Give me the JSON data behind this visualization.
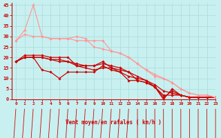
{
  "xlabel": "Vent moyen/en rafales ( km/h )",
  "xlim": [
    -0.5,
    23
  ],
  "ylim": [
    0,
    46
  ],
  "yticks": [
    0,
    5,
    10,
    15,
    20,
    25,
    30,
    35,
    40,
    45
  ],
  "xticks": [
    0,
    1,
    2,
    3,
    4,
    5,
    6,
    7,
    8,
    9,
    10,
    11,
    12,
    13,
    14,
    15,
    16,
    17,
    18,
    19,
    20,
    21,
    22,
    23
  ],
  "background_color": "#c8f0f0",
  "grid_color": "#b0dede",
  "lines": [
    {
      "x": [
        0,
        1,
        2,
        3,
        4,
        5,
        6,
        7,
        8,
        9,
        10,
        11,
        12,
        13,
        14,
        15,
        16,
        17,
        18,
        19,
        20,
        21,
        22,
        23
      ],
      "y": [
        18,
        21,
        21,
        21,
        20,
        20,
        20,
        16,
        16,
        16,
        18,
        15,
        14,
        13,
        9,
        8,
        6,
        2,
        2,
        2,
        1,
        1,
        1,
        1
      ],
      "color": "#cc0000",
      "lw": 0.9,
      "marker": "D",
      "ms": 1.8
    },
    {
      "x": [
        0,
        1,
        2,
        3,
        4,
        5,
        6,
        7,
        8,
        9,
        10,
        11,
        12,
        13,
        14,
        15,
        16,
        17,
        18,
        19,
        20,
        21,
        22,
        23
      ],
      "y": [
        18,
        20,
        20,
        14,
        13,
        10,
        13,
        13,
        13,
        13,
        16,
        14,
        13,
        9,
        9,
        8,
        6,
        1,
        4,
        2,
        1,
        1,
        1,
        1
      ],
      "color": "#cc0000",
      "lw": 0.9,
      "marker": "D",
      "ms": 1.8
    },
    {
      "x": [
        0,
        1,
        2,
        3,
        4,
        5,
        6,
        7,
        8,
        9,
        10,
        11,
        12,
        13,
        14,
        15,
        16,
        17,
        18,
        19,
        20,
        21,
        22,
        23
      ],
      "y": [
        18,
        20,
        20,
        20,
        19,
        18,
        18,
        16,
        15,
        14,
        15,
        15,
        13,
        11,
        10,
        9,
        6,
        0,
        5,
        2,
        1,
        1,
        1,
        1
      ],
      "color": "#cc0000",
      "lw": 0.9,
      "marker": "D",
      "ms": 1.8
    },
    {
      "x": [
        0,
        1,
        2,
        3,
        4,
        5,
        6,
        7,
        8,
        9,
        10,
        11,
        12,
        13,
        14,
        15,
        16,
        17,
        18,
        19,
        20,
        21,
        22,
        23
      ],
      "y": [
        18,
        20,
        20,
        20,
        19,
        19,
        18,
        17,
        16,
        16,
        17,
        16,
        15,
        13,
        11,
        9,
        7,
        4,
        3,
        2,
        1,
        1,
        1,
        1
      ],
      "color": "#cc0000",
      "lw": 0.9,
      "marker": "D",
      "ms": 1.8
    },
    {
      "x": [
        0,
        1,
        2,
        3,
        4,
        5,
        6,
        7,
        8,
        9,
        10,
        11,
        12,
        13,
        14,
        15,
        16,
        17,
        18,
        19,
        20,
        21,
        22,
        23
      ],
      "y": [
        28,
        31,
        30,
        30,
        29,
        29,
        29,
        28,
        28,
        28,
        28,
        23,
        22,
        20,
        17,
        14,
        12,
        10,
        8,
        5,
        3,
        2,
        2,
        1
      ],
      "color": "#ff9999",
      "lw": 0.9,
      "marker": "D",
      "ms": 1.8
    },
    {
      "x": [
        0,
        1,
        2,
        3,
        4,
        5,
        6,
        7,
        8,
        9,
        10,
        11,
        12,
        13,
        14,
        15,
        16,
        17,
        18,
        19,
        20,
        21,
        22,
        23
      ],
      "y": [
        28,
        33,
        45,
        30,
        29,
        29,
        29,
        30,
        29,
        25,
        24,
        23,
        22,
        20,
        17,
        14,
        11,
        10,
        8,
        5,
        3,
        2,
        2,
        1
      ],
      "color": "#ff9999",
      "lw": 0.9,
      "marker": "D",
      "ms": 1.8
    }
  ],
  "arrows": [
    {
      "x": 0,
      "sw": true
    },
    {
      "x": 1,
      "sw": true
    },
    {
      "x": 2,
      "sw": true
    },
    {
      "x": 3,
      "sw": true
    },
    {
      "x": 4,
      "sw": true
    },
    {
      "x": 5,
      "sw": true
    },
    {
      "x": 6,
      "sw": true
    },
    {
      "x": 7,
      "sw": true
    },
    {
      "x": 8,
      "sw": true
    },
    {
      "x": 9,
      "sw": true
    },
    {
      "x": 10,
      "sw": true
    },
    {
      "x": 11,
      "sw": true
    },
    {
      "x": 12,
      "sw": true
    },
    {
      "x": 13,
      "sw": true
    },
    {
      "x": 14,
      "sw": false
    },
    {
      "x": 15,
      "sw": false
    },
    {
      "x": 16,
      "sw": false
    },
    {
      "x": 17,
      "sw": false
    },
    {
      "x": 18,
      "sw": false
    },
    {
      "x": 19,
      "sw": false
    },
    {
      "x": 20,
      "sw": false
    },
    {
      "x": 21,
      "sw": false
    },
    {
      "x": 22,
      "sw": false
    },
    {
      "x": 23,
      "sw": false
    }
  ],
  "tick_color": "#cc0000",
  "axis_color": "#cc0000",
  "label_color": "#cc0000"
}
